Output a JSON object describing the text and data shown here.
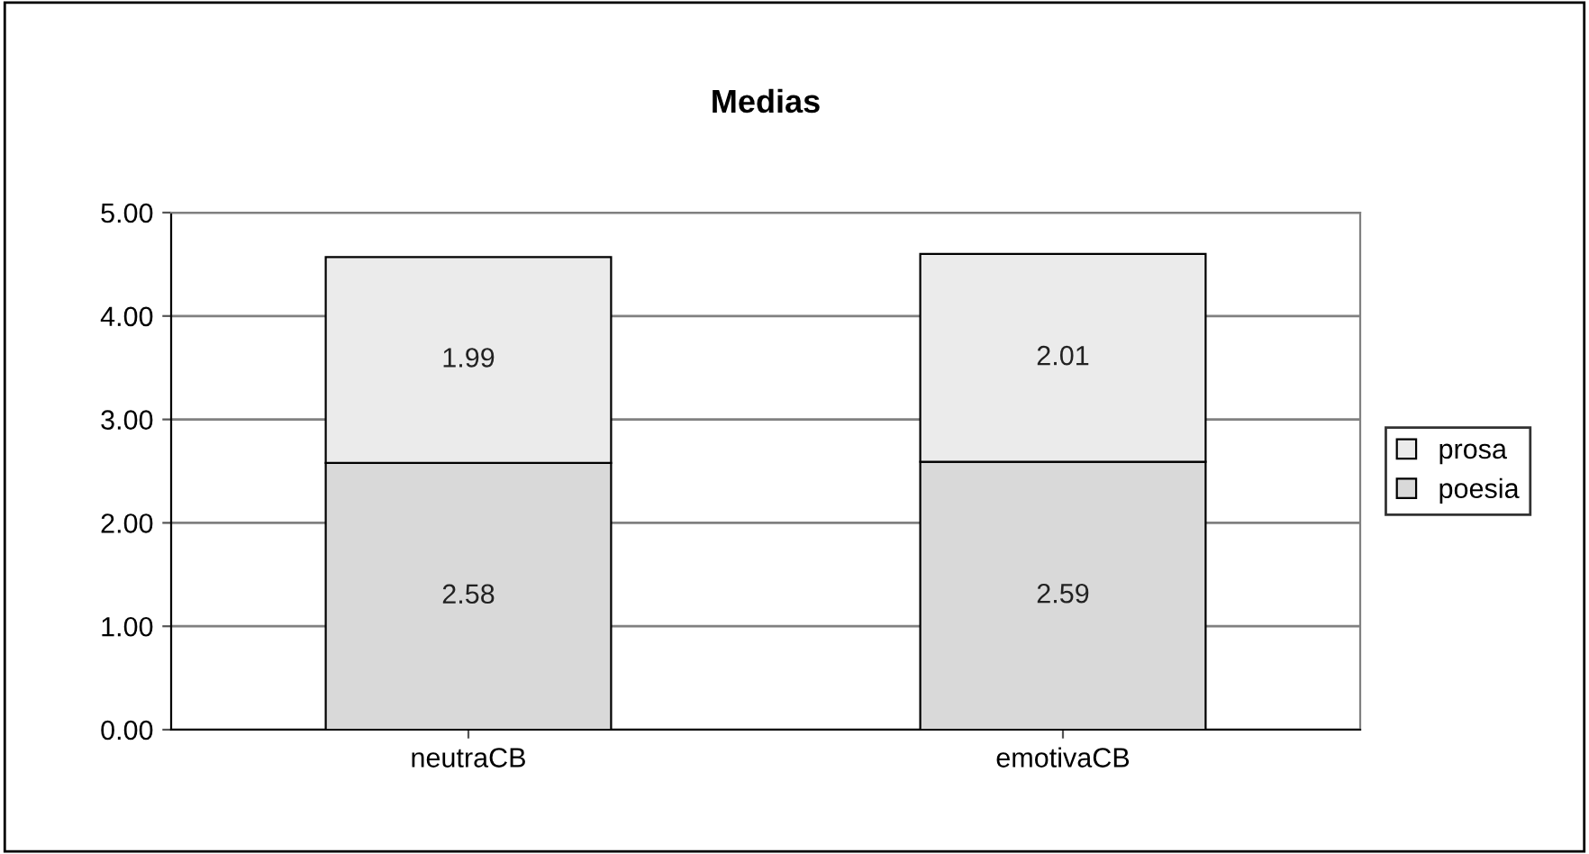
{
  "chart_data": {
    "type": "bar",
    "title": "Medias",
    "categories": [
      "neutraCB",
      "emotivaCB"
    ],
    "stacked": true,
    "series": [
      {
        "name": "poesia",
        "color": "#d9d9d9",
        "values": [
          2.58,
          2.59
        ]
      },
      {
        "name": "prosa",
        "color": "#ebebeb",
        "values": [
          1.99,
          2.01
        ]
      }
    ],
    "data_labels": true,
    "ylim": [
      0,
      5
    ],
    "yticks": [
      {
        "value": 0,
        "label": "0.00"
      },
      {
        "value": 1,
        "label": "1.00"
      },
      {
        "value": 2,
        "label": "2.00"
      },
      {
        "value": 3,
        "label": "3.00"
      },
      {
        "value": 4,
        "label": "4.00"
      },
      {
        "value": 5,
        "label": "5.00"
      }
    ],
    "grid": "y",
    "legend": "right"
  }
}
